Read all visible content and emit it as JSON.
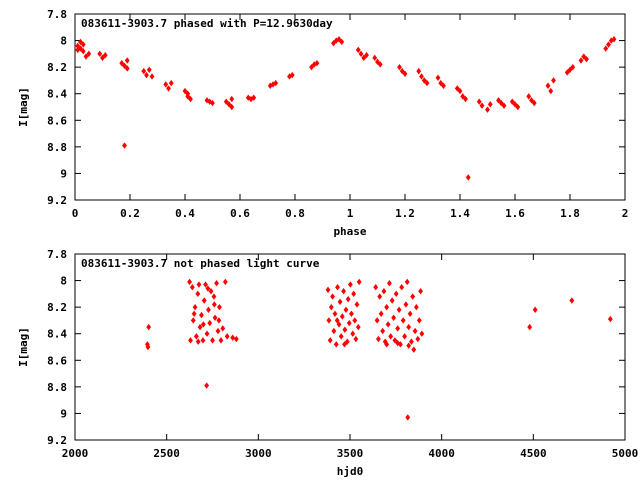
{
  "colors": {
    "points": "#ff0000",
    "axes": "#000000",
    "background": "#ffffff"
  },
  "chart_data": [
    {
      "type": "scatter",
      "title": "083611-3903.7 phased with P=12.9630day",
      "xlabel": "phase",
      "ylabel": "I[mag]",
      "xlim": [
        0,
        2
      ],
      "ylim": [
        7.8,
        9.2
      ],
      "y_inverted": true,
      "grid": false,
      "xticks": [
        "0",
        "0.2",
        "0.4",
        "0.6",
        "0.8",
        "1",
        "1.2",
        "1.4",
        "1.6",
        "1.8",
        "2"
      ],
      "yticks": [
        "7.8",
        "8",
        "8.2",
        "8.4",
        "8.6",
        "8.8",
        "9",
        "9.2"
      ],
      "series": [
        {
          "points": [
            [
              0.01,
              8.04
            ],
            [
              0.02,
              8.06
            ],
            [
              0.02,
              8.01
            ],
            [
              0.03,
              8.08
            ],
            [
              0.04,
              8.12
            ],
            [
              0.03,
              8.03
            ],
            [
              0.05,
              8.1
            ],
            [
              0.01,
              8.07
            ],
            [
              0.09,
              8.1
            ],
            [
              0.1,
              8.13
            ],
            [
              0.11,
              8.11
            ],
            [
              0.17,
              8.17
            ],
            [
              0.18,
              8.19
            ],
            [
              0.19,
              8.21
            ],
            [
              0.19,
              8.15
            ],
            [
              0.25,
              8.23
            ],
            [
              0.26,
              8.26
            ],
            [
              0.27,
              8.22
            ],
            [
              0.28,
              8.27
            ],
            [
              0.33,
              8.33
            ],
            [
              0.34,
              8.36
            ],
            [
              0.35,
              8.32
            ],
            [
              0.4,
              8.38
            ],
            [
              0.41,
              8.42
            ],
            [
              0.42,
              8.44
            ],
            [
              0.41,
              8.4
            ],
            [
              0.48,
              8.45
            ],
            [
              0.49,
              8.46
            ],
            [
              0.5,
              8.47
            ],
            [
              0.55,
              8.46
            ],
            [
              0.56,
              8.48
            ],
            [
              0.57,
              8.5
            ],
            [
              0.57,
              8.44
            ],
            [
              0.63,
              8.43
            ],
            [
              0.64,
              8.44
            ],
            [
              0.65,
              8.43
            ],
            [
              0.71,
              8.34
            ],
            [
              0.72,
              8.33
            ],
            [
              0.73,
              8.32
            ],
            [
              0.78,
              8.27
            ],
            [
              0.79,
              8.26
            ],
            [
              0.86,
              8.2
            ],
            [
              0.87,
              8.18
            ],
            [
              0.88,
              8.17
            ],
            [
              0.94,
              8.02
            ],
            [
              0.95,
              8.0
            ],
            [
              0.96,
              7.99
            ],
            [
              0.97,
              8.01
            ],
            [
              1.03,
              8.07
            ],
            [
              1.04,
              8.1
            ],
            [
              1.05,
              8.13
            ],
            [
              1.06,
              8.11
            ],
            [
              1.09,
              8.13
            ],
            [
              1.1,
              8.16
            ],
            [
              1.11,
              8.18
            ],
            [
              1.18,
              8.2
            ],
            [
              1.19,
              8.23
            ],
            [
              1.2,
              8.25
            ],
            [
              1.25,
              8.23
            ],
            [
              1.26,
              8.27
            ],
            [
              1.27,
              8.3
            ],
            [
              1.28,
              8.32
            ],
            [
              1.32,
              8.28
            ],
            [
              1.33,
              8.32
            ],
            [
              1.34,
              8.34
            ],
            [
              1.39,
              8.36
            ],
            [
              1.4,
              8.38
            ],
            [
              1.41,
              8.42
            ],
            [
              1.42,
              8.44
            ],
            [
              1.47,
              8.46
            ],
            [
              1.48,
              8.49
            ],
            [
              1.5,
              8.52
            ],
            [
              1.51,
              8.48
            ],
            [
              1.54,
              8.45
            ],
            [
              1.55,
              8.47
            ],
            [
              1.56,
              8.49
            ],
            [
              1.59,
              8.46
            ],
            [
              1.6,
              8.48
            ],
            [
              1.61,
              8.5
            ],
            [
              1.65,
              8.42
            ],
            [
              1.66,
              8.45
            ],
            [
              1.67,
              8.47
            ],
            [
              1.72,
              8.34
            ],
            [
              1.73,
              8.38
            ],
            [
              1.74,
              8.3
            ],
            [
              1.79,
              8.24
            ],
            [
              1.8,
              8.22
            ],
            [
              1.81,
              8.2
            ],
            [
              1.84,
              8.15
            ],
            [
              1.85,
              8.12
            ],
            [
              1.86,
              8.14
            ],
            [
              1.93,
              8.06
            ],
            [
              1.94,
              8.03
            ],
            [
              1.95,
              8.0
            ],
            [
              1.96,
              7.99
            ],
            [
              0.18,
              8.79
            ],
            [
              1.43,
              9.03
            ]
          ]
        }
      ]
    },
    {
      "type": "scatter",
      "title": "083611-3903.7 not phased light curve",
      "xlabel": "hjd0",
      "ylabel": "I[mag]",
      "xlim": [
        2000,
        5000
      ],
      "ylim": [
        7.8,
        9.2
      ],
      "y_inverted": true,
      "grid": false,
      "xticks": [
        "2000",
        "2500",
        "3000",
        "3500",
        "4000",
        "4500",
        "5000"
      ],
      "yticks": [
        "7.8",
        "8",
        "8.2",
        "8.4",
        "8.6",
        "8.8",
        "9",
        "9.2"
      ],
      "series": [
        {
          "points": [
            [
              2395,
              8.48
            ],
            [
              2398,
              8.5
            ],
            [
              2402,
              8.35
            ],
            [
              2625,
              8.01
            ],
            [
              2630,
              8.45
            ],
            [
              2640,
              8.05
            ],
            [
              2645,
              8.3
            ],
            [
              2655,
              8.2
            ],
            [
              2662,
              8.42
            ],
            [
              2670,
              8.1
            ],
            [
              2676,
              8.03
            ],
            [
              2682,
              8.35
            ],
            [
              2690,
              8.26
            ],
            [
              2698,
              8.45
            ],
            [
              2705,
              8.15
            ],
            [
              2712,
              8.03
            ],
            [
              2720,
              8.4
            ],
            [
              2728,
              8.22
            ],
            [
              2735,
              8.32
            ],
            [
              2742,
              8.08
            ],
            [
              2750,
              8.45
            ],
            [
              2758,
              8.12
            ],
            [
              2764,
              8.28
            ],
            [
              2772,
              8.02
            ],
            [
              2780,
              8.38
            ],
            [
              2788,
              8.2
            ],
            [
              2796,
              8.45
            ],
            [
              2806,
              8.36
            ],
            [
              2820,
              8.01
            ],
            [
              2830,
              8.42
            ],
            [
              2860,
              8.43
            ],
            [
              2880,
              8.44
            ],
            [
              2650,
              8.25
            ],
            [
              2672,
              8.46
            ],
            [
              2700,
              8.33
            ],
            [
              2725,
              8.06
            ],
            [
              2760,
              8.18
            ],
            [
              2785,
              8.3
            ],
            [
              2718,
              8.79
            ],
            [
              3380,
              8.07
            ],
            [
              3385,
              8.3
            ],
            [
              3392,
              8.45
            ],
            [
              3398,
              8.2
            ],
            [
              3405,
              8.12
            ],
            [
              3412,
              8.38
            ],
            [
              3418,
              8.25
            ],
            [
              3425,
              8.48
            ],
            [
              3432,
              8.05
            ],
            [
              3440,
              8.33
            ],
            [
              3446,
              8.16
            ],
            [
              3452,
              8.42
            ],
            [
              3458,
              8.27
            ],
            [
              3465,
              8.08
            ],
            [
              3472,
              8.37
            ],
            [
              3478,
              8.22
            ],
            [
              3485,
              8.46
            ],
            [
              3490,
              8.14
            ],
            [
              3496,
              8.32
            ],
            [
              3502,
              8.03
            ],
            [
              3508,
              8.25
            ],
            [
              3515,
              8.4
            ],
            [
              3520,
              8.1
            ],
            [
              3526,
              8.3
            ],
            [
              3532,
              8.44
            ],
            [
              3538,
              8.18
            ],
            [
              3545,
              8.35
            ],
            [
              3550,
              8.01
            ],
            [
              3470,
              8.48
            ],
            [
              3430,
              8.3
            ],
            [
              3640,
              8.05
            ],
            [
              3648,
              8.3
            ],
            [
              3655,
              8.44
            ],
            [
              3662,
              8.12
            ],
            [
              3670,
              8.25
            ],
            [
              3678,
              8.38
            ],
            [
              3685,
              8.08
            ],
            [
              3692,
              8.46
            ],
            [
              3700,
              8.2
            ],
            [
              3708,
              8.33
            ],
            [
              3715,
              8.02
            ],
            [
              3722,
              8.42
            ],
            [
              3730,
              8.15
            ],
            [
              3738,
              8.28
            ],
            [
              3745,
              8.45
            ],
            [
              3752,
              8.1
            ],
            [
              3760,
              8.36
            ],
            [
              3768,
              8.22
            ],
            [
              3775,
              8.48
            ],
            [
              3782,
              8.05
            ],
            [
              3790,
              8.3
            ],
            [
              3798,
              8.42
            ],
            [
              3805,
              8.18
            ],
            [
              3812,
              8.01
            ],
            [
              3820,
              8.35
            ],
            [
              3828,
              8.25
            ],
            [
              3835,
              8.46
            ],
            [
              3842,
              8.12
            ],
            [
              3848,
              8.52
            ],
            [
              3855,
              8.38
            ],
            [
              3862,
              8.2
            ],
            [
              3870,
              8.44
            ],
            [
              3878,
              8.3
            ],
            [
              3885,
              8.08
            ],
            [
              3892,
              8.4
            ],
            [
              3700,
              8.48
            ],
            [
              3760,
              8.47
            ],
            [
              3820,
              8.49
            ],
            [
              3815,
              9.03
            ],
            [
              4480,
              8.35
            ],
            [
              4510,
              8.22
            ],
            [
              4710,
              8.15
            ],
            [
              4920,
              8.29
            ]
          ]
        }
      ]
    }
  ]
}
